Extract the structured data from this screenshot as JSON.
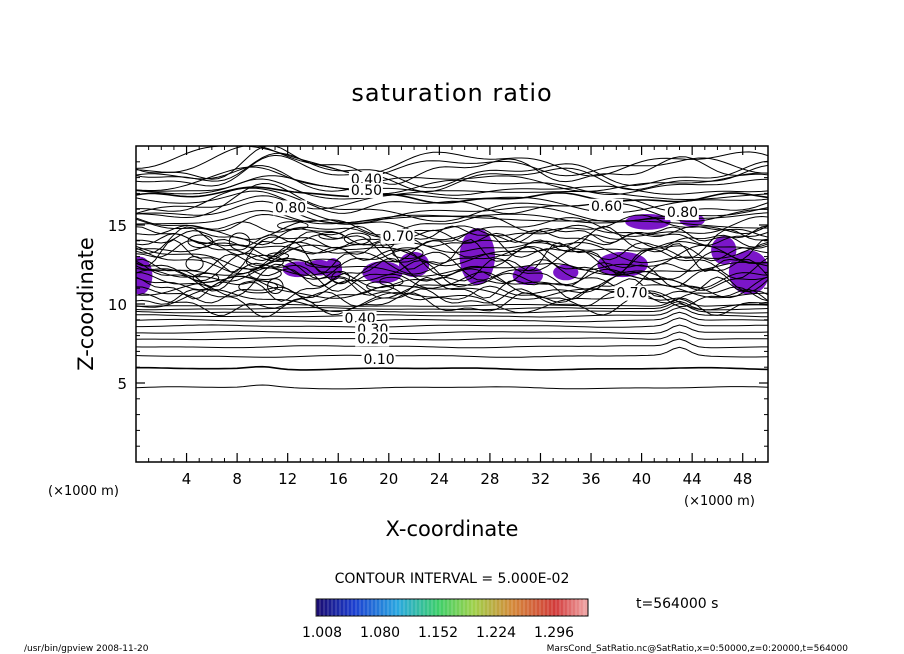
{
  "chart_data": {
    "type": "contour",
    "title": "saturation ratio",
    "xlabel": "X-coordinate",
    "ylabel": "Z-coordinate",
    "xunit": "(×1000 m)",
    "yunit": "(×1000 m)",
    "xlim": [
      0,
      50
    ],
    "ylim": [
      0,
      20
    ],
    "xticks": [
      4,
      8,
      12,
      16,
      20,
      24,
      28,
      32,
      36,
      40,
      44,
      48
    ],
    "yticks": [
      5,
      10,
      15
    ],
    "contour_interval_text": "CONTOUR INTERVAL = 5.000E-02",
    "contour_labels": [
      {
        "text": "0.40",
        "x": 16.5,
        "y": 8.8
      },
      {
        "text": "0.30",
        "x": 17.5,
        "y": 8.1
      },
      {
        "text": "0.20",
        "x": 17.5,
        "y": 7.5
      },
      {
        "text": "0.10",
        "x": 18.0,
        "y": 6.2
      },
      {
        "text": "0.40",
        "x": 17.0,
        "y": 17.6
      },
      {
        "text": "0.50",
        "x": 17.0,
        "y": 16.9
      },
      {
        "text": "0.60",
        "x": 36.0,
        "y": 15.9
      },
      {
        "text": "0.80",
        "x": 42.0,
        "y": 15.5
      },
      {
        "text": "0.80",
        "x": 11.0,
        "y": 15.8
      },
      {
        "text": "0.70",
        "x": 19.5,
        "y": 14.0
      },
      {
        "text": "0.70",
        "x": 38.0,
        "y": 10.4
      }
    ],
    "shaded_regions_color": "#7b16c8",
    "colorbar": {
      "ticks": [
        "1.008",
        "1.080",
        "1.152",
        "1.224",
        "1.296"
      ],
      "colors": [
        "#1a0a6e",
        "#1c3fd0",
        "#29a7e0",
        "#3dcf6a",
        "#9fd04a",
        "#d48a3a",
        "#d23a3a",
        "#f0a8a8"
      ]
    },
    "time_label": "t=564000 s"
  },
  "footer": {
    "left": "/usr/bin/gpview  2008-11-20",
    "right": "MarsCond_SatRatio.nc@SatRatio,x=0:50000,z=0:20000,t=564000"
  }
}
